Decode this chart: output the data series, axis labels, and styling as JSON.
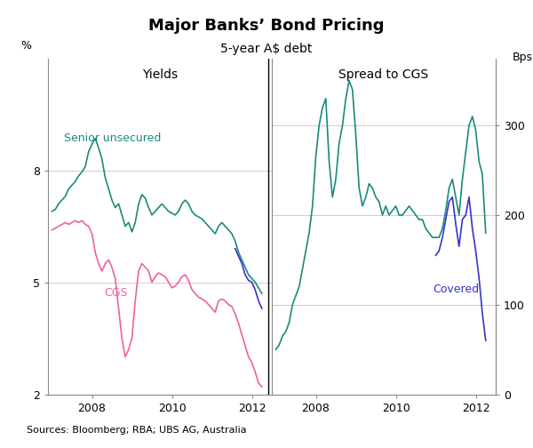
{
  "title": "Major Banks’ Bond Pricing",
  "subtitle": "5-year A$ debt",
  "source": "Sources: Bloomberg; RBA; UBS AG, Australia",
  "left_panel_title": "Yields",
  "right_panel_title": "Spread to CGS",
  "left_ylabel": "%",
  "right_ylabel": "Bps",
  "left_ylim": [
    2,
    11
  ],
  "right_ylim": [
    0,
    375
  ],
  "left_yticks": [
    2,
    5,
    8
  ],
  "right_yticks": [
    0,
    100,
    200,
    300
  ],
  "teal_color": "#1a8a7a",
  "pink_color": "#f060a0",
  "blue_color": "#3333cc",
  "background_color": "#ffffff",
  "grid_color": "#cccccc",
  "senior_dates": [
    2007.0,
    2007.083,
    2007.167,
    2007.25,
    2007.333,
    2007.417,
    2007.5,
    2007.583,
    2007.667,
    2007.75,
    2007.833,
    2007.917,
    2008.0,
    2008.083,
    2008.167,
    2008.25,
    2008.333,
    2008.417,
    2008.5,
    2008.583,
    2008.667,
    2008.75,
    2008.833,
    2008.917,
    2009.0,
    2009.083,
    2009.167,
    2009.25,
    2009.333,
    2009.417,
    2009.5,
    2009.583,
    2009.667,
    2009.75,
    2009.833,
    2009.917,
    2010.0,
    2010.083,
    2010.167,
    2010.25,
    2010.333,
    2010.417,
    2010.5,
    2010.583,
    2010.667,
    2010.75,
    2010.833,
    2010.917,
    2011.0,
    2011.083,
    2011.167,
    2011.25,
    2011.333,
    2011.417,
    2011.5,
    2011.583,
    2011.667,
    2011.75,
    2011.833,
    2011.917,
    2012.0,
    2012.083,
    2012.167,
    2012.25
  ],
  "senior_values": [
    6.9,
    6.95,
    7.1,
    7.2,
    7.3,
    7.5,
    7.6,
    7.7,
    7.85,
    7.95,
    8.1,
    8.5,
    8.7,
    8.85,
    8.6,
    8.3,
    7.8,
    7.5,
    7.2,
    7.0,
    7.1,
    6.8,
    6.5,
    6.6,
    6.35,
    6.6,
    7.1,
    7.35,
    7.25,
    7.0,
    6.8,
    6.9,
    7.0,
    7.1,
    7.0,
    6.9,
    6.85,
    6.8,
    6.9,
    7.1,
    7.2,
    7.1,
    6.9,
    6.8,
    6.75,
    6.7,
    6.6,
    6.5,
    6.4,
    6.3,
    6.5,
    6.6,
    6.5,
    6.4,
    6.3,
    6.1,
    5.8,
    5.6,
    5.4,
    5.2,
    5.1,
    5.0,
    4.85,
    4.7
  ],
  "cgs_dates": [
    2007.0,
    2007.083,
    2007.167,
    2007.25,
    2007.333,
    2007.417,
    2007.5,
    2007.583,
    2007.667,
    2007.75,
    2007.833,
    2007.917,
    2008.0,
    2008.083,
    2008.167,
    2008.25,
    2008.333,
    2008.417,
    2008.5,
    2008.583,
    2008.667,
    2008.75,
    2008.833,
    2008.917,
    2009.0,
    2009.083,
    2009.167,
    2009.25,
    2009.333,
    2009.417,
    2009.5,
    2009.583,
    2009.667,
    2009.75,
    2009.833,
    2009.917,
    2010.0,
    2010.083,
    2010.167,
    2010.25,
    2010.333,
    2010.417,
    2010.5,
    2010.583,
    2010.667,
    2010.75,
    2010.833,
    2010.917,
    2011.0,
    2011.083,
    2011.167,
    2011.25,
    2011.333,
    2011.417,
    2011.5,
    2011.583,
    2011.667,
    2011.75,
    2011.833,
    2011.917,
    2012.0,
    2012.083,
    2012.167,
    2012.25
  ],
  "cgs_values": [
    6.4,
    6.45,
    6.5,
    6.55,
    6.6,
    6.55,
    6.6,
    6.65,
    6.6,
    6.65,
    6.55,
    6.5,
    6.3,
    5.8,
    5.5,
    5.3,
    5.5,
    5.6,
    5.4,
    5.1,
    4.3,
    3.5,
    3.0,
    3.2,
    3.5,
    4.5,
    5.3,
    5.5,
    5.4,
    5.3,
    5.0,
    5.15,
    5.25,
    5.2,
    5.15,
    5.0,
    4.85,
    4.9,
    5.0,
    5.15,
    5.2,
    5.05,
    4.8,
    4.7,
    4.6,
    4.55,
    4.5,
    4.4,
    4.3,
    4.2,
    4.5,
    4.55,
    4.5,
    4.4,
    4.35,
    4.15,
    3.9,
    3.6,
    3.3,
    3.0,
    2.85,
    2.6,
    2.3,
    2.2
  ],
  "covered_left_dates": [
    2011.583,
    2011.667,
    2011.75,
    2011.833,
    2011.917,
    2012.0,
    2012.083,
    2012.167,
    2012.25
  ],
  "covered_left_values": [
    5.9,
    5.7,
    5.5,
    5.2,
    5.05,
    5.0,
    4.8,
    4.5,
    4.3
  ],
  "spread_senior_dates": [
    2007.0,
    2007.083,
    2007.167,
    2007.25,
    2007.333,
    2007.417,
    2007.5,
    2007.583,
    2007.667,
    2007.75,
    2007.833,
    2007.917,
    2008.0,
    2008.083,
    2008.167,
    2008.25,
    2008.333,
    2008.417,
    2008.5,
    2008.583,
    2008.667,
    2008.75,
    2008.833,
    2008.917,
    2009.0,
    2009.083,
    2009.167,
    2009.25,
    2009.333,
    2009.417,
    2009.5,
    2009.583,
    2009.667,
    2009.75,
    2009.833,
    2009.917,
    2010.0,
    2010.083,
    2010.167,
    2010.25,
    2010.333,
    2010.417,
    2010.5,
    2010.583,
    2010.667,
    2010.75,
    2010.833,
    2010.917,
    2011.0,
    2011.083,
    2011.167,
    2011.25,
    2011.333,
    2011.417,
    2011.5,
    2011.583,
    2011.667,
    2011.75,
    2011.833,
    2011.917,
    2012.0,
    2012.083,
    2012.167,
    2012.25
  ],
  "spread_senior_values": [
    50,
    55,
    65,
    70,
    80,
    100,
    110,
    120,
    140,
    160,
    180,
    210,
    265,
    300,
    320,
    330,
    260,
    220,
    240,
    280,
    300,
    330,
    350,
    340,
    290,
    230,
    210,
    220,
    235,
    230,
    220,
    215,
    200,
    210,
    200,
    205,
    210,
    200,
    200,
    205,
    210,
    205,
    200,
    195,
    195,
    185,
    180,
    175,
    175,
    175,
    185,
    205,
    230,
    240,
    220,
    200,
    240,
    270,
    300,
    310,
    295,
    260,
    245,
    180
  ],
  "spread_covered_dates": [
    2011.0,
    2011.083,
    2011.167,
    2011.25,
    2011.333,
    2011.417,
    2011.5,
    2011.583,
    2011.667,
    2011.75,
    2011.833,
    2011.917,
    2012.0,
    2012.083,
    2012.167,
    2012.25
  ],
  "spread_covered_values": [
    155,
    160,
    175,
    195,
    215,
    220,
    190,
    165,
    195,
    200,
    220,
    185,
    160,
    130,
    90,
    60
  ],
  "xticks_left": [
    2008,
    2010,
    2012
  ],
  "xticks_right": [
    2008,
    2010,
    2012
  ],
  "left_xlim": [
    2006.9,
    2012.5
  ],
  "right_xlim": [
    2006.9,
    2012.5
  ]
}
